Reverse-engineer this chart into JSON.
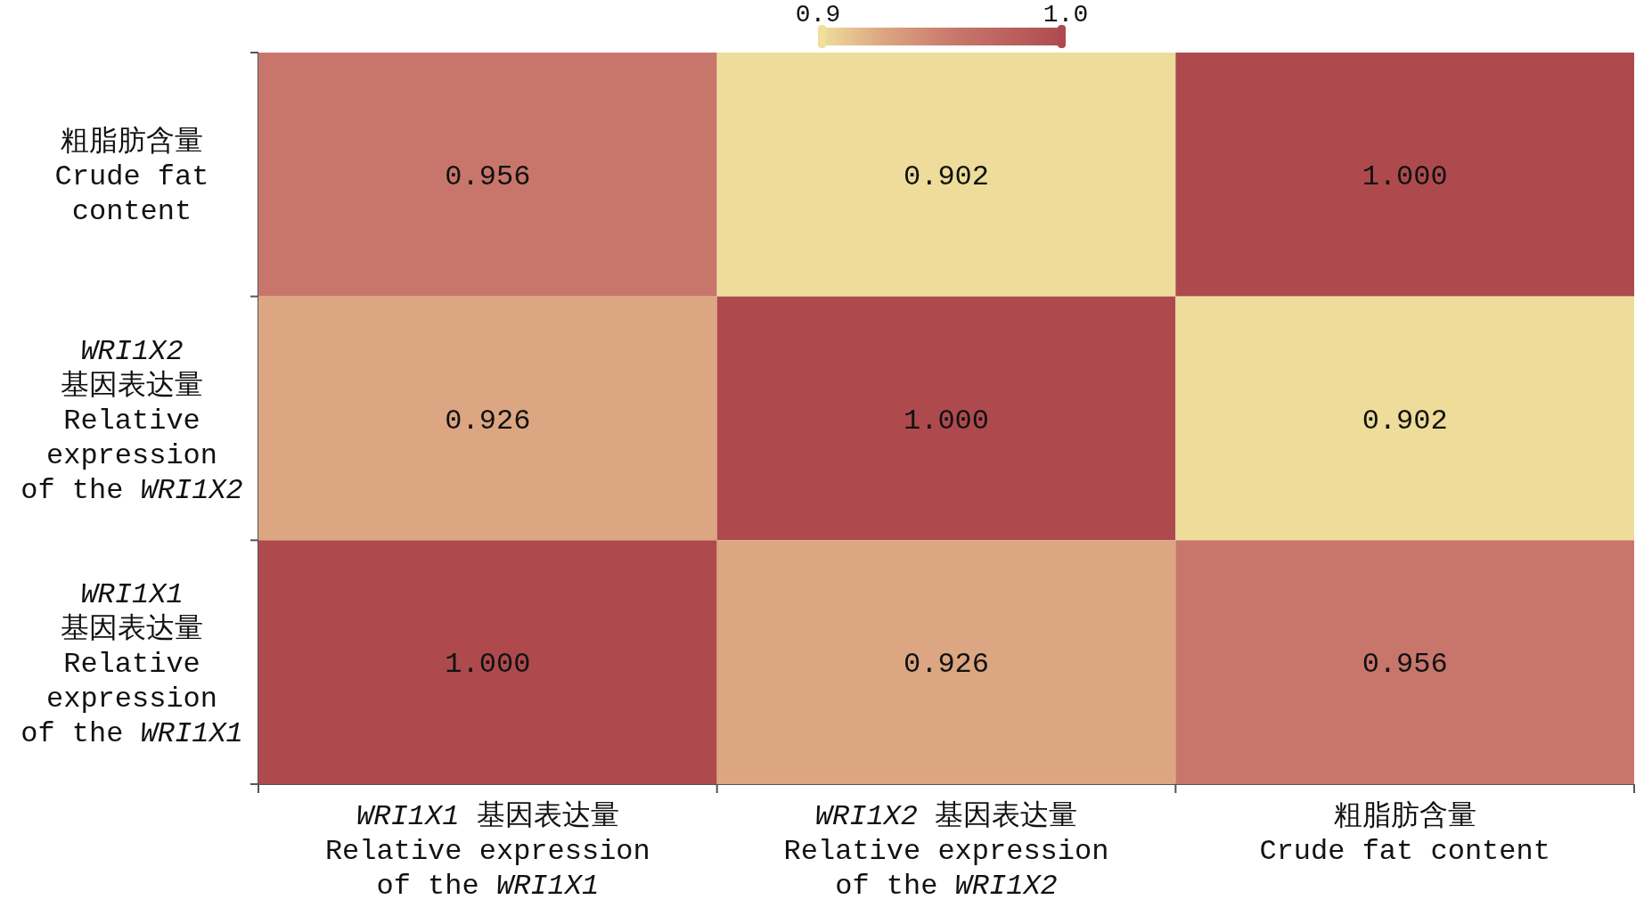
{
  "chart_data": {
    "type": "heatmap",
    "categories": [
      "*WRI1X1* 基因表达量\nRelative expression\nof the *WRI1X1*",
      "*WRI1X2* 基因表达量\nRelative expression\nof the *WRI1X2*",
      "粗脂肪含量\nCrude fat content"
    ],
    "y_categories": [
      "粗脂肪含量\nCrude fat\ncontent",
      "*WRI1X2*\n基因表达量\nRelative\nexpression\nof the *WRI1X2*",
      "*WRI1X1*\n基因表达量\nRelative\nexpression\nof the *WRI1X1*"
    ],
    "cells": [
      [
        0.956,
        0.902,
        1.0
      ],
      [
        0.926,
        1.0,
        0.902
      ],
      [
        1.0,
        0.926,
        0.956
      ]
    ],
    "cell_labels": [
      [
        "0.956",
        "0.902",
        "1.000"
      ],
      [
        "0.926",
        "1.000",
        "0.902"
      ],
      [
        "1.000",
        "0.926",
        "0.956"
      ]
    ],
    "clim": [
      0.9,
      1.0
    ],
    "cticks": [
      {
        "value": 0.9,
        "label": "0.9"
      },
      {
        "value": 1.0,
        "label": "1.0"
      }
    ]
  }
}
